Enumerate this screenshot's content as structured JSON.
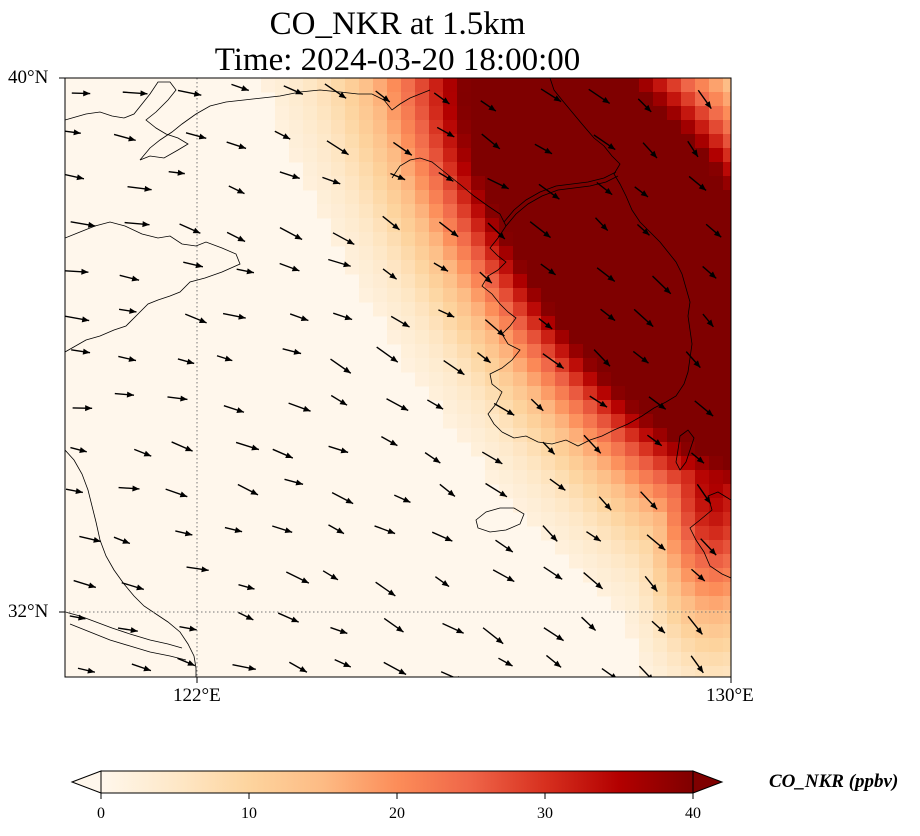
{
  "title": {
    "line1": "CO_NKR at 1.5km",
    "line2": "Time: 2024-03-20 18:00:00"
  },
  "map": {
    "variable": "CO_NKR",
    "height": "1.5km",
    "time": "2024-03-20 18:00:00",
    "lon_range": [
      120,
      130
    ],
    "lat_range": [
      31,
      40
    ],
    "gridlines": {
      "lon": [
        122
      ],
      "lat": [
        32
      ],
      "style": "dotted"
    },
    "lat_labels": [
      "40°N",
      "32°N"
    ],
    "lon_labels": [
      "122°E",
      "130°E"
    ],
    "plume": "high CO concentrations over the Korean Peninsula and adjacent seas, diminishing toward the southwest",
    "wind_vectors": "black arrows, predominantly from the northwest"
  },
  "colorbar": {
    "label": "CO_NKR (ppbv)",
    "ticks": [
      "0",
      "10",
      "20",
      "30",
      "40"
    ],
    "range": [
      0,
      40
    ],
    "colormap": "OrRd",
    "extend": "both",
    "colors": [
      "#fff7ec",
      "#fee8c8",
      "#fdd49e",
      "#fdbb84",
      "#fc8d59",
      "#ef6548",
      "#d7301f",
      "#b30000",
      "#7f0000"
    ]
  }
}
